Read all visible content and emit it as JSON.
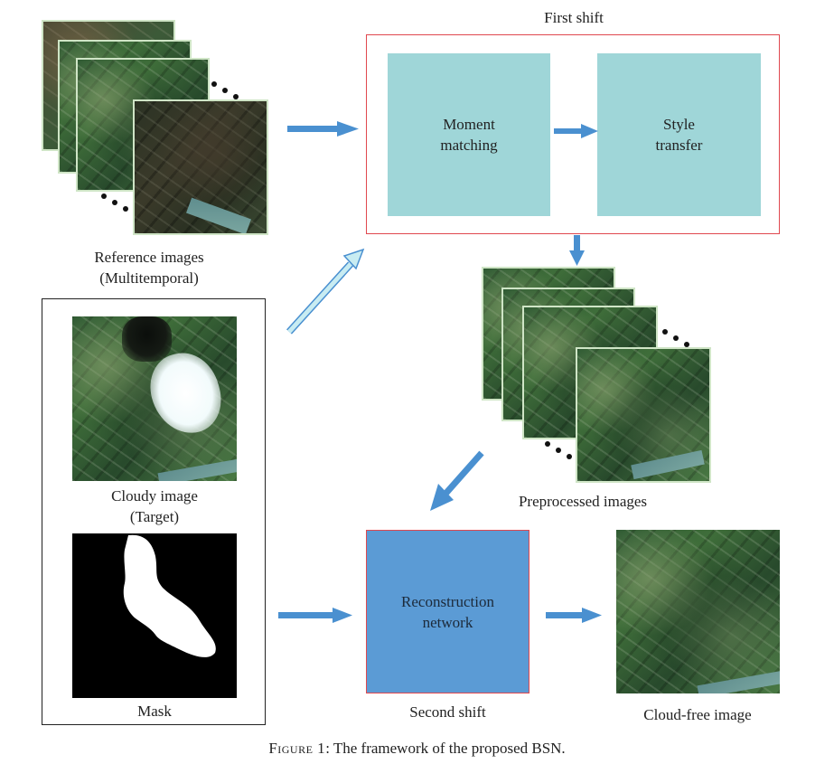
{
  "first_shift": {
    "title": "First shift",
    "block1": [
      "Moment",
      "matching"
    ],
    "block2": [
      "Style",
      "transfer"
    ]
  },
  "reference": {
    "line1": "Reference images",
    "line2": "(Multitemporal)"
  },
  "cloudy": {
    "line1": "Cloudy image",
    "line2": "(Target)"
  },
  "mask_label": "Mask",
  "preprocessed_label": "Preprocessed images",
  "reconstruction": {
    "line1": "Reconstruction",
    "line2": "network",
    "caption": "Second shift"
  },
  "output_label": "Cloud-free image",
  "caption": {
    "prefix": "Figure 1",
    "text": ": The framework of the proposed BSN."
  },
  "colors": {
    "arrow_blue": "#4a90d0",
    "arrow_light": "#c8ecf2",
    "teal_block": "#9fd6d8",
    "recon_block": "#5b9bd5",
    "frame_red": "#e0484f"
  }
}
